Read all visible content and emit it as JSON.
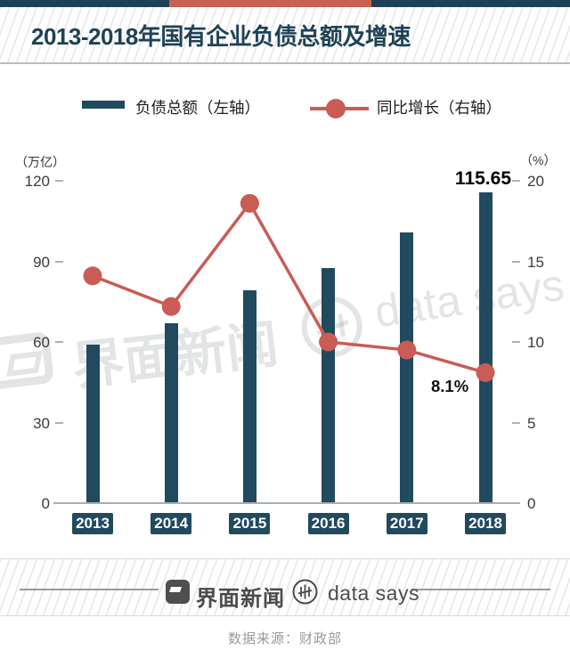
{
  "title": "2013-2018年国有企业负债总额及增速",
  "legend": {
    "bar_label": "负债总额（左轴）",
    "line_label": "同比增长（右轴）"
  },
  "chart_data": {
    "type": "bar+line",
    "title": "2013-2018年国有企业负债总额及增速",
    "categories": [
      "2013",
      "2014",
      "2015",
      "2016",
      "2017",
      "2018"
    ],
    "series": [
      {
        "name": "负债总额（左轴）",
        "type": "bar",
        "axis": "left",
        "unit": "万亿",
        "values": [
          59.1,
          66.9,
          79.1,
          87.4,
          100.7,
          115.65
        ]
      },
      {
        "name": "同比增长（右轴）",
        "type": "line",
        "axis": "right",
        "unit": "%",
        "values": [
          14.1,
          12.2,
          18.6,
          10.0,
          9.5,
          8.1
        ]
      }
    ],
    "left_axis": {
      "unit_label": "（万亿）",
      "ticks": [
        0,
        30,
        60,
        90,
        120
      ],
      "range": [
        0,
        120
      ]
    },
    "right_axis": {
      "unit_label": "（%）",
      "ticks": [
        0,
        5,
        10,
        15,
        20
      ],
      "range": [
        0,
        20
      ]
    },
    "annotations": [
      {
        "text": "115.65",
        "target": "2018 bar"
      },
      {
        "text": "8.1%",
        "target": "2018 line point"
      }
    ],
    "legend_position": "top",
    "grid": false
  },
  "watermark": {
    "jiemian": "界面新闻",
    "datasays": "data says"
  },
  "footer": {
    "jiemian": "界面新闻",
    "datasays": "data says",
    "source": "数据来源：财政部"
  },
  "colors": {
    "navy": "#214a5e",
    "navy_dark": "#1e4255",
    "red": "#c95c55",
    "red_bar": "#c96153",
    "tick": "#9fb6c1",
    "baseline": "#a6b0b8",
    "text": "#333333",
    "wm": "rgba(158,164,168,0.30)"
  }
}
